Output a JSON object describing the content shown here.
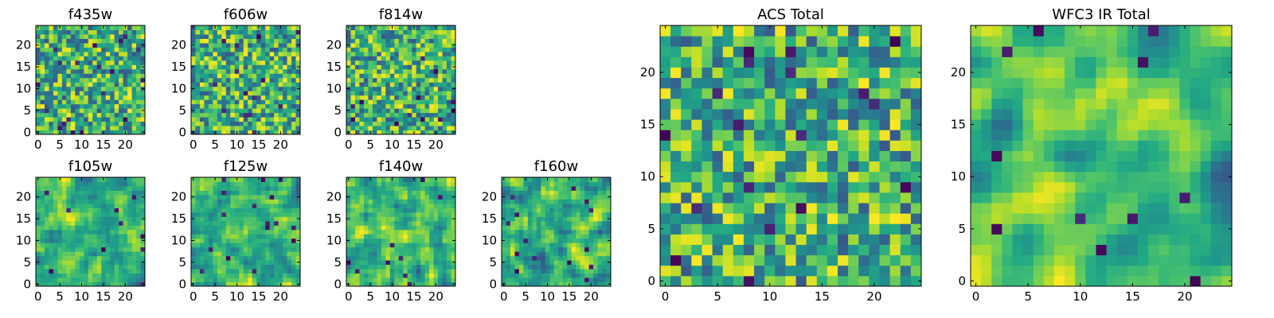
{
  "chart_data": [
    {
      "type": "heatmap",
      "title": "f435w",
      "xticks": [
        "0",
        "5",
        "10",
        "15",
        "20"
      ],
      "yticks": [
        "0",
        "5",
        "10",
        "15",
        "20"
      ],
      "xlim": [
        -0.5,
        24.5
      ],
      "ylim": [
        -0.5,
        24.5
      ],
      "size": 25,
      "colormap": "viridis",
      "smooth": 0,
      "seed": 11
    },
    {
      "type": "heatmap",
      "title": "f606w",
      "xticks": [
        "0",
        "5",
        "10",
        "15",
        "20"
      ],
      "yticks": [
        "0",
        "5",
        "10",
        "15",
        "20"
      ],
      "xlim": [
        -0.5,
        24.5
      ],
      "ylim": [
        -0.5,
        24.5
      ],
      "size": 25,
      "colormap": "viridis",
      "smooth": 0,
      "seed": 23
    },
    {
      "type": "heatmap",
      "title": "f814w",
      "xticks": [
        "0",
        "5",
        "10",
        "15",
        "20"
      ],
      "yticks": [
        "0",
        "5",
        "10",
        "15",
        "20"
      ],
      "xlim": [
        -0.5,
        24.5
      ],
      "ylim": [
        -0.5,
        24.5
      ],
      "size": 25,
      "colormap": "viridis",
      "smooth": 0,
      "seed": 37
    },
    {
      "type": "heatmap",
      "title": "f105w",
      "xticks": [
        "0",
        "5",
        "10",
        "15",
        "20"
      ],
      "yticks": [
        "0",
        "5",
        "10",
        "15",
        "20"
      ],
      "xlim": [
        -0.5,
        24.5
      ],
      "ylim": [
        -0.5,
        24.5
      ],
      "size": 25,
      "colormap": "viridis",
      "smooth": 1,
      "seed": 41
    },
    {
      "type": "heatmap",
      "title": "f125w",
      "xticks": [
        "0",
        "5",
        "10",
        "15",
        "20"
      ],
      "yticks": [
        "0",
        "5",
        "10",
        "15",
        "20"
      ],
      "xlim": [
        -0.5,
        24.5
      ],
      "ylim": [
        -0.5,
        24.5
      ],
      "size": 25,
      "colormap": "viridis",
      "smooth": 1,
      "seed": 53
    },
    {
      "type": "heatmap",
      "title": "f140w",
      "xticks": [
        "0",
        "5",
        "10",
        "15",
        "20"
      ],
      "yticks": [
        "0",
        "5",
        "10",
        "15",
        "20"
      ],
      "xlim": [
        -0.5,
        24.5
      ],
      "ylim": [
        -0.5,
        24.5
      ],
      "size": 25,
      "colormap": "viridis",
      "smooth": 1,
      "seed": 67
    },
    {
      "type": "heatmap",
      "title": "f160w",
      "xticks": [
        "0",
        "5",
        "10",
        "15",
        "20"
      ],
      "yticks": [
        "0",
        "5",
        "10",
        "15",
        "20"
      ],
      "xlim": [
        -0.5,
        24.5
      ],
      "ylim": [
        -0.5,
        24.5
      ],
      "size": 25,
      "colormap": "viridis",
      "smooth": 1,
      "seed": 79
    },
    {
      "type": "heatmap",
      "title": "ACS Total",
      "xticks": [
        "0",
        "5",
        "10",
        "15",
        "20"
      ],
      "yticks": [
        "0",
        "5",
        "10",
        "15",
        "20"
      ],
      "xlim": [
        -0.5,
        24.5
      ],
      "ylim": [
        -0.5,
        24.5
      ],
      "size": 25,
      "colormap": "viridis",
      "smooth": 0,
      "seed": 97
    },
    {
      "type": "heatmap",
      "title": "WFC3 IR Total",
      "xticks": [
        "0",
        "5",
        "10",
        "15",
        "20"
      ],
      "yticks": [
        "0",
        "5",
        "10",
        "15",
        "20"
      ],
      "xlim": [
        -0.5,
        24.5
      ],
      "ylim": [
        -0.5,
        24.5
      ],
      "size": 25,
      "colormap": "viridis",
      "smooth": 2,
      "seed": 113
    }
  ]
}
